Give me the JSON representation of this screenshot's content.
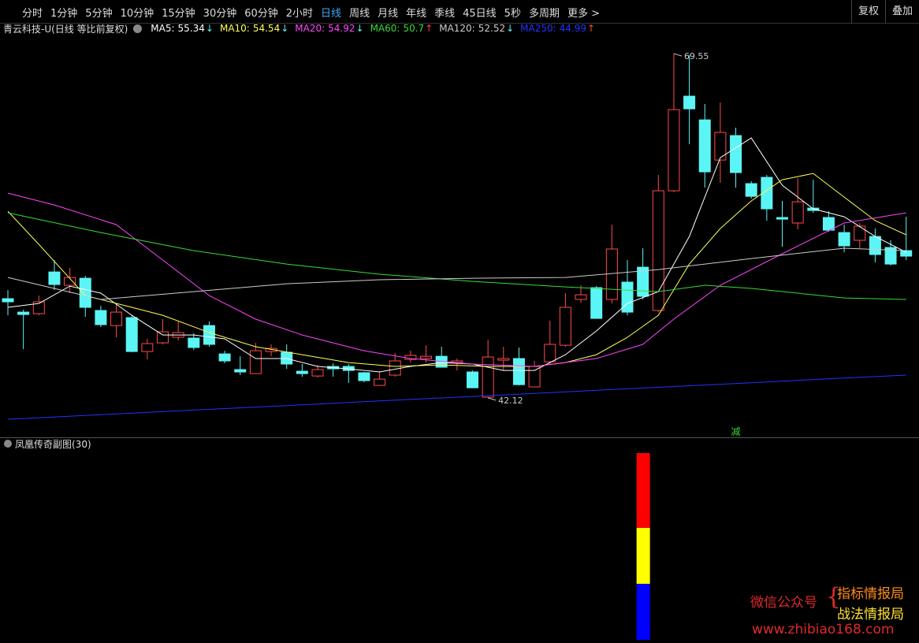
{
  "toolbar": {
    "items": [
      "分时",
      "1分钟",
      "5分钟",
      "10分钟",
      "15分钟",
      "30分钟",
      "60分钟",
      "2小时",
      "日线",
      "周线",
      "月线",
      "年线",
      "季线",
      "45日线",
      "5秒",
      "多周期",
      "更多 >"
    ],
    "active": 8,
    "right": [
      "复权",
      "叠加"
    ]
  },
  "chart_data": {
    "type": "candlestick",
    "title": "青云科技-U(日线 等比前复权)",
    "indicators": [
      {
        "label": "MA5:",
        "value": 55.34,
        "arrow": "↓",
        "color": "#ffffff",
        "arrow_color": "#5cf0f0"
      },
      {
        "label": "MA10:",
        "value": 54.54,
        "arrow": "↓",
        "color": "#ffff55",
        "arrow_color": "#5cf0f0"
      },
      {
        "label": "MA20:",
        "value": 54.92,
        "arrow": "↓",
        "color": "#ff44ff",
        "arrow_color": "#5cf0f0"
      },
      {
        "label": "MA60:",
        "value": 50.7,
        "arrow": "↑",
        "color": "#33dd33",
        "arrow_color": "#ff4040"
      },
      {
        "label": "MA120:",
        "value": 52.52,
        "arrow": "↓",
        "color": "#cccccc",
        "arrow_color": "#5cf0f0"
      },
      {
        "label": "MA250:",
        "value": 44.99,
        "arrow": "↑",
        "color": "#2233ff",
        "arrow_color": "#ff4040"
      }
    ],
    "up_color": "#ff4a4a",
    "down_color": "#5cf5f5",
    "ylim": [
      38.97,
      71.94
    ],
    "open": [
      50.02,
      48.95,
      48.83,
      52.15,
      51.09,
      51.65,
      49.08,
      47.88,
      48.51,
      45.81,
      46.5,
      46.94,
      46.88,
      47.88,
      45.62,
      44.37,
      44.05,
      45.81,
      45.75,
      44.24,
      43.86,
      44.62,
      44.62,
      44.12,
      43.11,
      43.93,
      45.18,
      45.25,
      45.43,
      44.93,
      44.18,
      42.17,
      45.12,
      45.25,
      42.99,
      44.99,
      46.31,
      49.96,
      50.9,
      49.96,
      51.34,
      52.53,
      49.08,
      58.62,
      66.16,
      64.27,
      61.07,
      63.02,
      59.19,
      59.69,
      56.49,
      56.05,
      57.24,
      56.49,
      55.29,
      54.67,
      54.98,
      54.1,
      53.85
    ],
    "high": [
      50.71,
      49.14,
      50.27,
      53.1,
      52.47,
      51.84,
      49.45,
      49.64,
      48.7,
      46.82,
      48.39,
      48.2,
      47.26,
      48.2,
      45.87,
      45.43,
      46.5,
      46.38,
      46.38,
      44.81,
      44.74,
      44.87,
      44.81,
      44.18,
      44.24,
      45.69,
      45.87,
      46.31,
      46.19,
      45.25,
      44.3,
      46.75,
      46.19,
      46.13,
      45.06,
      48.26,
      50.46,
      51.09,
      51.02,
      55.92,
      53.1,
      54.04,
      59.88,
      69.55,
      69.42,
      65.53,
      65.66,
      63.65,
      59.38,
      59.88,
      57.81,
      59.63,
      59.5,
      56.99,
      55.92,
      56.05,
      55.61,
      54.67,
      56.55
    ],
    "low": [
      48.7,
      46.0,
      48.7,
      50.71,
      50.46,
      48.57,
      47.76,
      46.94,
      45.75,
      45.18,
      46.38,
      46.69,
      45.94,
      46.19,
      44.87,
      43.93,
      44.05,
      45.43,
      44.43,
      43.8,
      43.74,
      43.8,
      43.3,
      43.36,
      43.11,
      43.8,
      44.93,
      44.93,
      44.56,
      44.3,
      42.92,
      42.12,
      44.3,
      43.11,
      42.99,
      44.81,
      46.19,
      49.7,
      48.45,
      49.64,
      48.7,
      49.96,
      48.95,
      58.5,
      62.33,
      58.87,
      59.25,
      58.87,
      57.99,
      56.24,
      54.16,
      55.55,
      56.86,
      55.36,
      53.72,
      54.04,
      52.91,
      52.66,
      53.1
    ],
    "close": [
      49.77,
      48.76,
      49.77,
      51.15,
      51.71,
      49.33,
      47.95,
      48.95,
      45.81,
      46.44,
      47.38,
      47.32,
      46.13,
      46.38,
      45.06,
      44.18,
      45.87,
      46.06,
      44.81,
      44.05,
      44.37,
      44.43,
      44.3,
      43.49,
      43.61,
      45.06,
      45.5,
      45.43,
      44.56,
      45.06,
      42.92,
      45.37,
      45.25,
      43.17,
      44.62,
      46.38,
      49.33,
      50.33,
      48.45,
      53.98,
      48.95,
      50.21,
      58.62,
      65.09,
      65.15,
      60.13,
      63.27,
      60.07,
      58.18,
      57.18,
      56.36,
      57.74,
      57.05,
      55.48,
      54.23,
      55.8,
      53.54,
      52.78,
      53.41
    ],
    "series": [
      {
        "color": "#ffffff",
        "x": [
          0,
          2,
          4,
          6,
          8,
          10,
          12,
          14,
          16,
          18,
          20,
          22,
          24,
          26,
          28,
          30,
          32,
          34,
          36,
          38,
          40,
          42,
          44,
          46,
          48,
          50,
          52,
          54,
          56,
          58
        ],
        "values": [
          49.33,
          49.64,
          51.02,
          50.46,
          48.7,
          47.13,
          47.13,
          46.82,
          45.25,
          45.25,
          44.62,
          44.43,
          44.18,
          44.62,
          44.93,
          44.81,
          44.3,
          44.3,
          45.56,
          47.45,
          49.64,
          50.58,
          54.98,
          61.26,
          62.83,
          59.06,
          57.18,
          56.55,
          54.98,
          53.72
        ]
      },
      {
        "color": "#ffff55",
        "x": [
          0,
          2,
          5,
          8,
          10,
          13,
          16,
          19,
          22,
          25,
          28,
          31,
          34,
          36,
          38,
          40,
          42,
          44,
          46,
          48,
          50,
          52,
          54,
          56,
          58
        ],
        "values": [
          56.99,
          54.35,
          50.27,
          49.33,
          48.7,
          47.32,
          46.19,
          45.56,
          44.93,
          44.62,
          44.74,
          44.62,
          44.62,
          44.93,
          45.56,
          46.94,
          48.7,
          52.78,
          55.61,
          57.81,
          59.5,
          60.0,
          58.12,
          56.24,
          55.11
        ]
      },
      {
        "color": "#ff44ff",
        "x": [
          0,
          3,
          7,
          10,
          13,
          16,
          19,
          23,
          26,
          30,
          34,
          38,
          41,
          43,
          46,
          50,
          54,
          58
        ],
        "values": [
          58.43,
          57.49,
          55.92,
          53.1,
          50.27,
          48.39,
          47.13,
          45.87,
          45.25,
          44.81,
          44.62,
          45.25,
          46.38,
          48.39,
          51.09,
          53.6,
          56.05,
          56.86
        ]
      },
      {
        "color": "#33dd33",
        "x": [
          0,
          6,
          12,
          18,
          24,
          30,
          36,
          42,
          45,
          48,
          54,
          58
        ],
        "values": [
          56.86,
          55.29,
          53.85,
          52.78,
          51.97,
          51.4,
          50.96,
          50.58,
          51.09,
          50.84,
          50.08,
          49.96
        ]
      },
      {
        "color": "#cccccc",
        "x": [
          0,
          6,
          12,
          18,
          24,
          30,
          36,
          42,
          48,
          54,
          58
        ],
        "values": [
          51.71,
          49.96,
          50.58,
          51.21,
          51.53,
          51.65,
          51.71,
          52.34,
          53.22,
          54.04,
          53.85
        ]
      },
      {
        "color": "#2233ff",
        "x": [
          0,
          6,
          12,
          18,
          24,
          30,
          36,
          42,
          48,
          54,
          58
        ],
        "values": [
          40.41,
          40.77,
          41.14,
          41.5,
          41.87,
          42.23,
          42.6,
          42.96,
          43.32,
          43.69,
          43.93
        ]
      }
    ],
    "annotations": [
      {
        "index": 43,
        "value": 69.55
      },
      {
        "index": 31,
        "value": 42.12
      }
    ],
    "signal": {
      "index": 47,
      "text": "减",
      "color": "#33dd33"
    }
  },
  "sub_chart": {
    "type": "stacked-bar",
    "title": "凤凰传奇副图(30)",
    "index": 41,
    "ylim": [
      0,
      100
    ],
    "segments": [
      {
        "color": "#0000ff",
        "value": 30
      },
      {
        "color": "#ffff00",
        "value": 30
      },
      {
        "color": "#ff0000",
        "value": 40
      }
    ]
  },
  "watermark": {
    "left": "微信公众号",
    "brace": "{",
    "top": "指标情报局",
    "bottom": "战法情报局",
    "url": "www.zhibiao168.com"
  }
}
